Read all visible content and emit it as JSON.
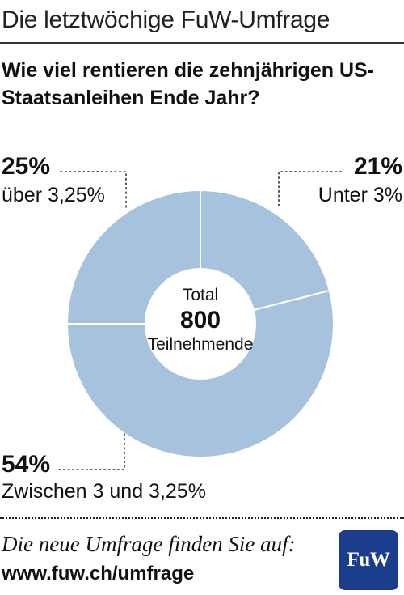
{
  "header": {
    "title": "Die letztwöchige FuW-Umfrage"
  },
  "chart_data": {
    "type": "pie",
    "title": "Wie viel rentieren die zehnjährigen US-Staatsanleihen Ende Jahr?",
    "slices": [
      {
        "label": "Unter 3%",
        "value": 21,
        "display": "21%"
      },
      {
        "label": "Zwischen 3 und 3,25%",
        "value": 54,
        "display": "54%"
      },
      {
        "label": "über 3,25%",
        "value": 25,
        "display": "25%"
      }
    ],
    "center": {
      "line1": "Total",
      "value": "800",
      "line3": "Teilnehmende"
    },
    "colors": {
      "slice_fill": "#a6c2dc",
      "separator": "#ffffff",
      "leader": "#333333"
    }
  },
  "footer": {
    "text": "Die neue Umfrage finden Sie auf:",
    "url": "www.fuw.ch/umfrage",
    "logo_text": "FuW",
    "logo_color": "#1a3d8c"
  }
}
